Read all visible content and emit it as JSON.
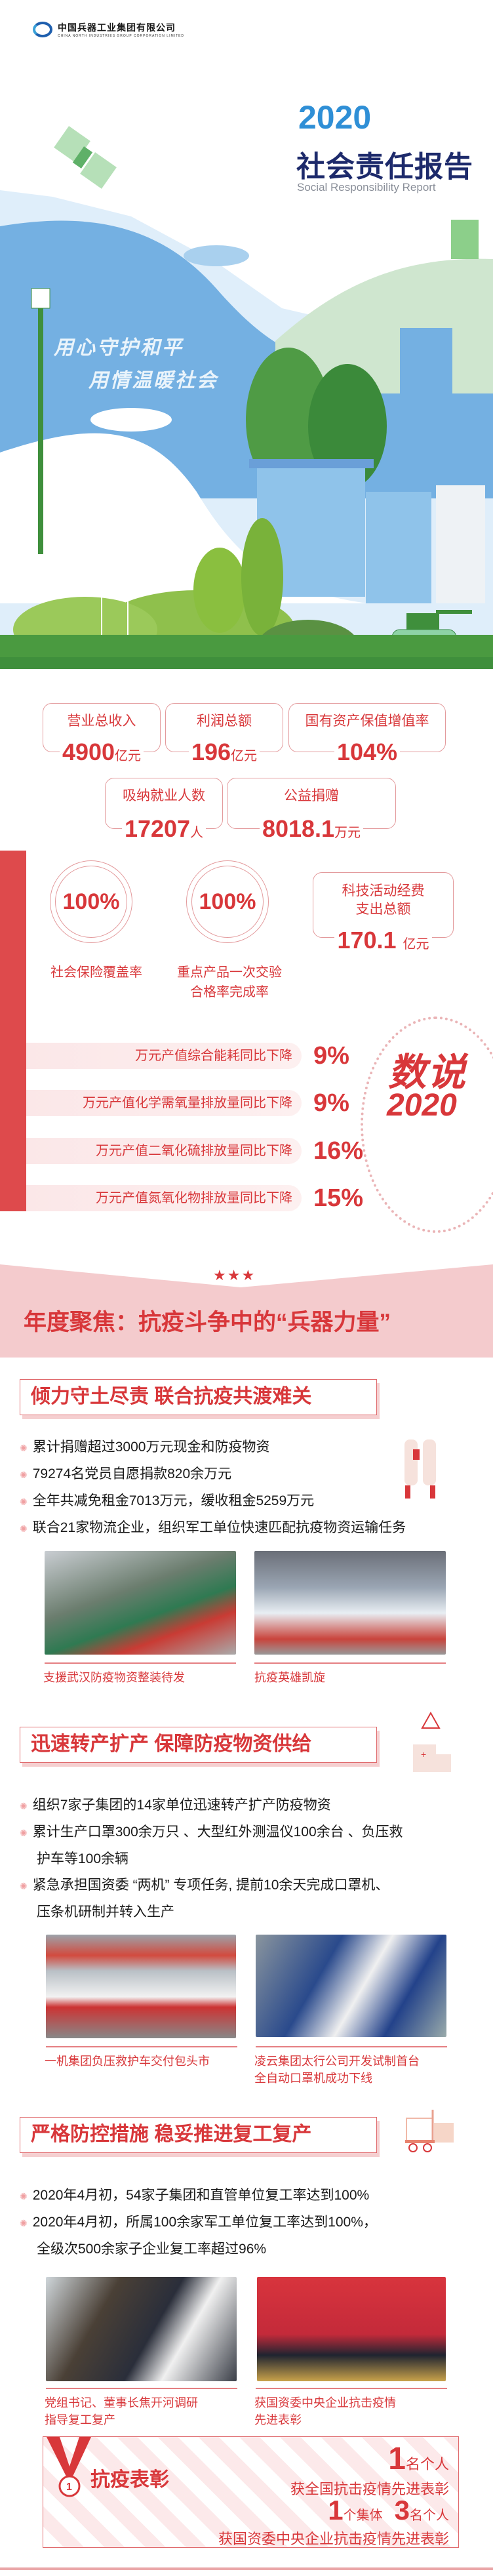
{
  "header": {
    "logo_cn": "中国兵器工业集团有限公司",
    "logo_en": "CHINA NORTH INDUSTRIES GROUP CORPORATION LIMITED",
    "year": "2020",
    "title": "社会责任报告",
    "subtitle": "Social Responsibility Report",
    "slogan_1": "用心守护和平",
    "slogan_2": "用情温暖社会"
  },
  "stats": [
    {
      "label": "营业总收入",
      "value": "4900",
      "unit": "亿元"
    },
    {
      "label": "利润总额",
      "value": "196",
      "unit": "亿元"
    },
    {
      "label": "国有资产保值增值率",
      "value": "104%",
      "unit": ""
    },
    {
      "label": "吸纳就业人数",
      "value": "17207",
      "unit": "人"
    },
    {
      "label": "公益捐赠",
      "value": "8018.1",
      "unit": "万元"
    }
  ],
  "rates": [
    {
      "value": "100%",
      "label": "社会保险覆盖率",
      "label_2": ""
    },
    {
      "value": "100%",
      "label": "重点产品一次交验",
      "label_2": "合格率完成率"
    }
  ],
  "tech": {
    "label_1": "科技活动经费",
    "label_2": "支出总额",
    "value": "170.1",
    "unit": "亿元"
  },
  "reductions": [
    {
      "label": "万元产值综合能耗同比下降",
      "value": "9%"
    },
    {
      "label": "万元产值化学需氧量排放量同比下降",
      "value": "9%"
    },
    {
      "label": "万元产值二氧化硫排放量同比下降",
      "value": "16%"
    },
    {
      "label": "万元产值氮氧化物排放量同比下降",
      "value": "15%"
    }
  ],
  "badge": {
    "line1": "数说",
    "line2": "2020"
  },
  "focus": {
    "stars": "★★★",
    "title": "年度聚焦：抗疫斗争中的“兵器力量”"
  },
  "sections": [
    {
      "title": "倾力守土尽责 联合抗疫共渡难关",
      "bullets": [
        "累计捐赠超过3000万元现金和防疫物资",
        "79274名党员自愿捐款820余万元",
        "全年共减免租金7013万元，缓收租金5259万元",
        "联合21家物流企业，组织军工单位快速匹配抗疫物资运输任务"
      ],
      "captions": [
        "支援武汉防疫物资整装待发",
        "抗疫英雄凯旋"
      ]
    },
    {
      "title": "迅速转产扩产 保障防疫物资供给",
      "bullets": [
        "组织7家子集团的14家单位迅速转产扩产防疫物资",
        "累计生产口罩300余万只 、大型红外测温仪100余台 、负压救",
        "护车等100余辆",
        "紧急承担国资委 “两机” 专项任务, 提前10余天完成口罩机、",
        "压条机研制并转入生产"
      ],
      "captions": [
        "一机集团负压救护车交付包头市",
        "凌云集团太行公司开发试制首台",
        "全自动口罩机成功下线"
      ]
    },
    {
      "title": "严格防控措施 稳妥推进复工复产",
      "bullets": [
        "2020年4月初，54家子集团和直管单位复工率达到100%",
        "2020年4月初，所属100余家军工单位复工率达到100%，",
        "全级次500余家子企业复工率超过96%"
      ],
      "captions": [
        "党组书记、董事长焦开河调研",
        "指导复工复产",
        "获国资委中央企业抗击疫情",
        "先进表彰"
      ]
    }
  ],
  "award": {
    "title": "抗疫表彰",
    "medal_number": "1",
    "n1": "1",
    "n1_unit": "名个人",
    "line1": "获全国抗击疫情先进表彰",
    "n2": "1",
    "n2_unit": "个集体",
    "n3": "3",
    "n3_unit": "名个人",
    "line2": "获国资委中央企业抗击疫情先进表彰"
  },
  "colors": {
    "accent": "#d8373a",
    "pink": "#f3c9cb",
    "navy": "#1d2a6b",
    "blue": "#2f8fd6",
    "green": "#3f8f3c"
  }
}
